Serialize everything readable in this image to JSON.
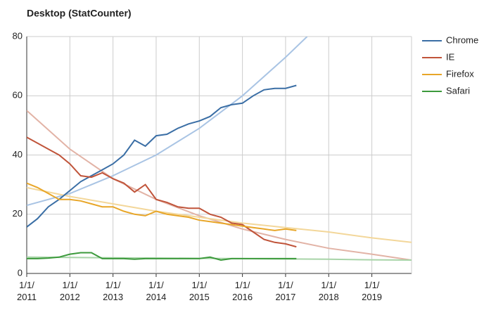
{
  "chart_data": {
    "type": "line",
    "title": "Desktop (StatCounter)",
    "x": [
      2011,
      2011.25,
      2011.5,
      2011.75,
      2012,
      2012.25,
      2012.5,
      2012.75,
      2013,
      2013.25,
      2013.5,
      2013.75,
      2014,
      2014.25,
      2014.5,
      2014.75,
      2015,
      2015.25,
      2015.5,
      2015.75,
      2016,
      2016.25,
      2016.5,
      2016.75,
      2017,
      2017.25
    ],
    "series": [
      {
        "name": "Chrome",
        "color": "#3a6ea5",
        "values": [
          15.7,
          18.5,
          22.5,
          25,
          28,
          31,
          33,
          35,
          37,
          40,
          45,
          43,
          46.5,
          47,
          49,
          50.5,
          51.5,
          53,
          56,
          57,
          57.5,
          60,
          62,
          62.5,
          62.5,
          63.5
        ]
      },
      {
        "name": "IE",
        "color": "#c0543a",
        "values": [
          46,
          44,
          42,
          40,
          37,
          33,
          32.5,
          34,
          32,
          30.5,
          27.5,
          30,
          25,
          24,
          22.5,
          22,
          22,
          20,
          19,
          17,
          16.5,
          14,
          11.5,
          10.5,
          10,
          9
        ]
      },
      {
        "name": "Firefox",
        "color": "#e8a628",
        "values": [
          30.5,
          29,
          27,
          25,
          25,
          24.5,
          23.5,
          22.5,
          22.5,
          21,
          20,
          19.5,
          21,
          20,
          19.5,
          19,
          18,
          17.5,
          17,
          16.5,
          16,
          15.5,
          15,
          14.5,
          15,
          14.5
        ]
      },
      {
        "name": "Safari",
        "color": "#3c9a3c",
        "values": [
          5,
          5,
          5.2,
          5.5,
          6.5,
          7,
          7,
          5,
          5,
          5,
          4.8,
          5,
          5,
          5,
          5,
          5,
          5,
          5.5,
          4.5,
          5,
          5,
          5,
          5,
          5,
          5,
          5
        ]
      }
    ],
    "trendlines": [
      {
        "color": "#a9c4e4",
        "x": [
          2011,
          2012,
          2013,
          2014,
          2015,
          2016,
          2017,
          2017.5
        ],
        "values": [
          23,
          27,
          33,
          40,
          49,
          60,
          73,
          80
        ]
      },
      {
        "color": "#e2b3a6",
        "x": [
          2011,
          2012,
          2013,
          2014,
          2015,
          2016,
          2017,
          2018,
          2019,
          2019.92
        ],
        "values": [
          55,
          42,
          32,
          25,
          19.5,
          15,
          11.5,
          8.5,
          6.5,
          4.5
        ]
      },
      {
        "color": "#f3d79a",
        "x": [
          2011,
          2012,
          2013,
          2014,
          2015,
          2016,
          2017,
          2018,
          2019,
          2019.92
        ],
        "values": [
          29,
          26,
          23.5,
          21,
          19,
          17,
          15.5,
          14,
          12,
          10.5
        ]
      },
      {
        "color": "#a8d4a8",
        "x": [
          2011,
          2012,
          2013,
          2014,
          2015,
          2016,
          2017,
          2018,
          2019,
          2019.92
        ],
        "values": [
          5.5,
          5.4,
          5.3,
          5.2,
          5.1,
          5,
          4.9,
          4.8,
          4.6,
          4.5
        ]
      }
    ],
    "xlim": [
      2011,
      2019.92
    ],
    "xticks": [
      {
        "value": 2011,
        "label": "1/1/ 2011"
      },
      {
        "value": 2012,
        "label": "1/1/ 2012"
      },
      {
        "value": 2013,
        "label": "1/1/ 2013"
      },
      {
        "value": 2014,
        "label": "1/1/ 2014"
      },
      {
        "value": 2015,
        "label": "1/1/ 2015"
      },
      {
        "value": 2016,
        "label": "1/1/ 2016"
      },
      {
        "value": 2017,
        "label": "1/1/ 2017"
      },
      {
        "value": 2018,
        "label": "1/1/ 2018"
      },
      {
        "value": 2019,
        "label": "1/1/ 2019"
      }
    ],
    "ylim": [
      0,
      80
    ],
    "yticks": [
      0,
      20,
      40,
      60,
      80
    ],
    "grid": true,
    "legend": "right"
  }
}
